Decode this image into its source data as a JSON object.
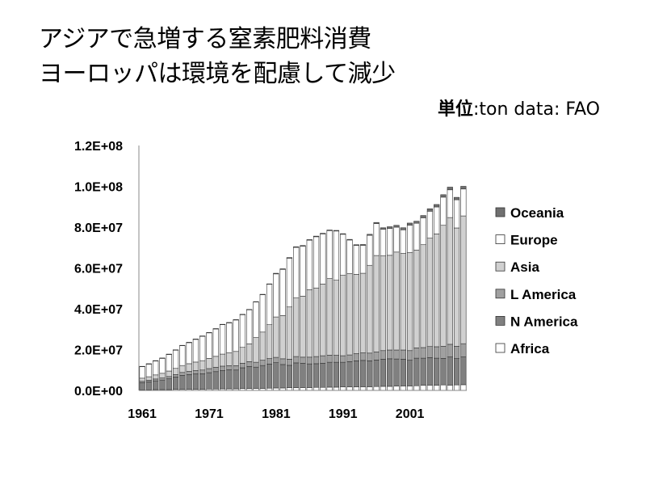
{
  "title_line1": "アジアで急増する窒素肥料消費",
  "title_line2": "ヨーロッパは環境を配慮して減少",
  "unit_label": "単位",
  "unit_value": ":ton   data: FAO",
  "chart_data": {
    "type": "bar",
    "stacked": true,
    "categories": [
      1961,
      1962,
      1963,
      1964,
      1965,
      1966,
      1967,
      1968,
      1969,
      1970,
      1971,
      1972,
      1973,
      1974,
      1975,
      1976,
      1977,
      1978,
      1979,
      1980,
      1981,
      1982,
      1983,
      1984,
      1985,
      1986,
      1987,
      1988,
      1989,
      1990,
      1991,
      1992,
      1993,
      1994,
      1995,
      1996,
      1997,
      1998,
      1999,
      2000,
      2001,
      2002,
      2003,
      2004,
      2005,
      2006,
      2007,
      2008,
      2009
    ],
    "x_tick_labels": [
      "1961",
      "1971",
      "1981",
      "1991",
      "2001"
    ],
    "y_tick_labels": [
      "0.0E+00",
      "2.0E+07",
      "4.0E+07",
      "6.0E+07",
      "8.0E+07",
      "1.0E+08",
      "1.2E+08"
    ],
    "ylim": [
      0,
      120000000
    ],
    "grid": false,
    "legend_position": "right",
    "series": [
      {
        "name": "Africa",
        "color": "#ffffff",
        "values": [
          0.3,
          0.3,
          0.4,
          0.4,
          0.4,
          0.5,
          0.5,
          0.6,
          0.6,
          0.6,
          0.7,
          0.7,
          0.8,
          0.8,
          0.8,
          0.9,
          0.9,
          1.0,
          1.0,
          1.1,
          1.2,
          1.2,
          1.3,
          1.3,
          1.4,
          1.4,
          1.5,
          1.5,
          1.6,
          1.6,
          1.7,
          1.7,
          1.7,
          1.8,
          1.8,
          1.9,
          2.0,
          2.0,
          2.1,
          2.2,
          2.2,
          2.3,
          2.5,
          2.6,
          2.5,
          2.7,
          2.6,
          2.7,
          2.8
        ]
      },
      {
        "name": "N America",
        "color": "#808080",
        "values": [
          3.5,
          3.9,
          4.3,
          4.7,
          5.3,
          6.1,
          6.9,
          7.2,
          7.5,
          7.6,
          8.0,
          8.5,
          8.9,
          9.3,
          9.2,
          10.2,
          10.8,
          10.4,
          11.2,
          11.8,
          12.4,
          11.5,
          11.0,
          12.2,
          11.9,
          11.6,
          11.6,
          11.8,
          12.2,
          12.2,
          12.1,
          12.4,
          12.8,
          12.9,
          12.7,
          13.0,
          13.3,
          13.5,
          13.3,
          13.1,
          12.6,
          13.5,
          13.3,
          13.5,
          13.3,
          13.0,
          13.8,
          12.9,
          13.6
        ]
      },
      {
        "name": "L America",
        "color": "#a0a0a0",
        "values": [
          0.7,
          0.8,
          0.9,
          1.0,
          1.1,
          1.2,
          1.4,
          1.5,
          1.6,
          1.8,
          2.0,
          2.1,
          2.2,
          2.0,
          2.1,
          2.2,
          2.4,
          2.4,
          2.6,
          2.7,
          2.6,
          2.8,
          3.0,
          3.1,
          3.0,
          3.3,
          3.5,
          3.7,
          3.5,
          3.4,
          3.2,
          3.3,
          3.5,
          3.7,
          3.8,
          4.0,
          4.2,
          4.3,
          4.4,
          4.5,
          4.7,
          5.0,
          5.2,
          5.4,
          5.6,
          5.9,
          6.2,
          6.0,
          6.5
        ]
      },
      {
        "name": "Asia",
        "color": "#d0d0d0",
        "values": [
          1.5,
          1.7,
          2.0,
          2.3,
          2.7,
          3.0,
          3.4,
          3.8,
          4.2,
          4.6,
          5.0,
          5.4,
          5.9,
          6.3,
          7.0,
          7.8,
          8.7,
          12.1,
          13.8,
          16.6,
          19.8,
          21.2,
          25.6,
          28.7,
          29.9,
          33.0,
          33.6,
          35.1,
          37.5,
          36.8,
          39.4,
          39.8,
          38.9,
          39.0,
          43.0,
          47.2,
          46.4,
          46.4,
          48.0,
          47.3,
          48.0,
          48.0,
          50.4,
          53.1,
          55.3,
          59.3,
          62.1,
          58.0,
          62.6
        ]
      },
      {
        "name": "Europe",
        "color": "#ffffff",
        "values": [
          5.6,
          6.2,
          6.8,
          7.3,
          8.1,
          8.9,
          9.7,
          10.3,
          11.1,
          11.9,
          12.5,
          13.4,
          14.4,
          14.7,
          15.4,
          16.0,
          16.7,
          17.4,
          18.3,
          19.8,
          21.1,
          22.6,
          23.9,
          24.8,
          24.5,
          24.3,
          25.1,
          24.6,
          23.5,
          24.1,
          20.1,
          16.5,
          14.1,
          13.7,
          14.7,
          15.6,
          13.1,
          13.2,
          12.2,
          11.6,
          13.5,
          13.1,
          13.2,
          13.2,
          13.2,
          13.8,
          13.6,
          13.8,
          13.2
        ]
      },
      {
        "name": "Oceania",
        "color": "#707070",
        "values": [
          0.2,
          0.2,
          0.2,
          0.2,
          0.2,
          0.2,
          0.2,
          0.2,
          0.2,
          0.2,
          0.2,
          0.2,
          0.2,
          0.2,
          0.2,
          0.2,
          0.2,
          0.2,
          0.2,
          0.2,
          0.3,
          0.3,
          0.3,
          0.3,
          0.3,
          0.3,
          0.3,
          0.3,
          0.3,
          0.3,
          0.3,
          0.3,
          0.4,
          0.4,
          0.5,
          0.6,
          0.7,
          0.8,
          0.9,
          1.0,
          1.0,
          1.0,
          1.1,
          1.2,
          1.2,
          1.2,
          1.3,
          1.2,
          1.3
        ]
      }
    ],
    "value_scale": 1000000,
    "legend_order": [
      "Oceania",
      "Europe",
      "Asia",
      "L America",
      "N America",
      "Africa"
    ]
  }
}
